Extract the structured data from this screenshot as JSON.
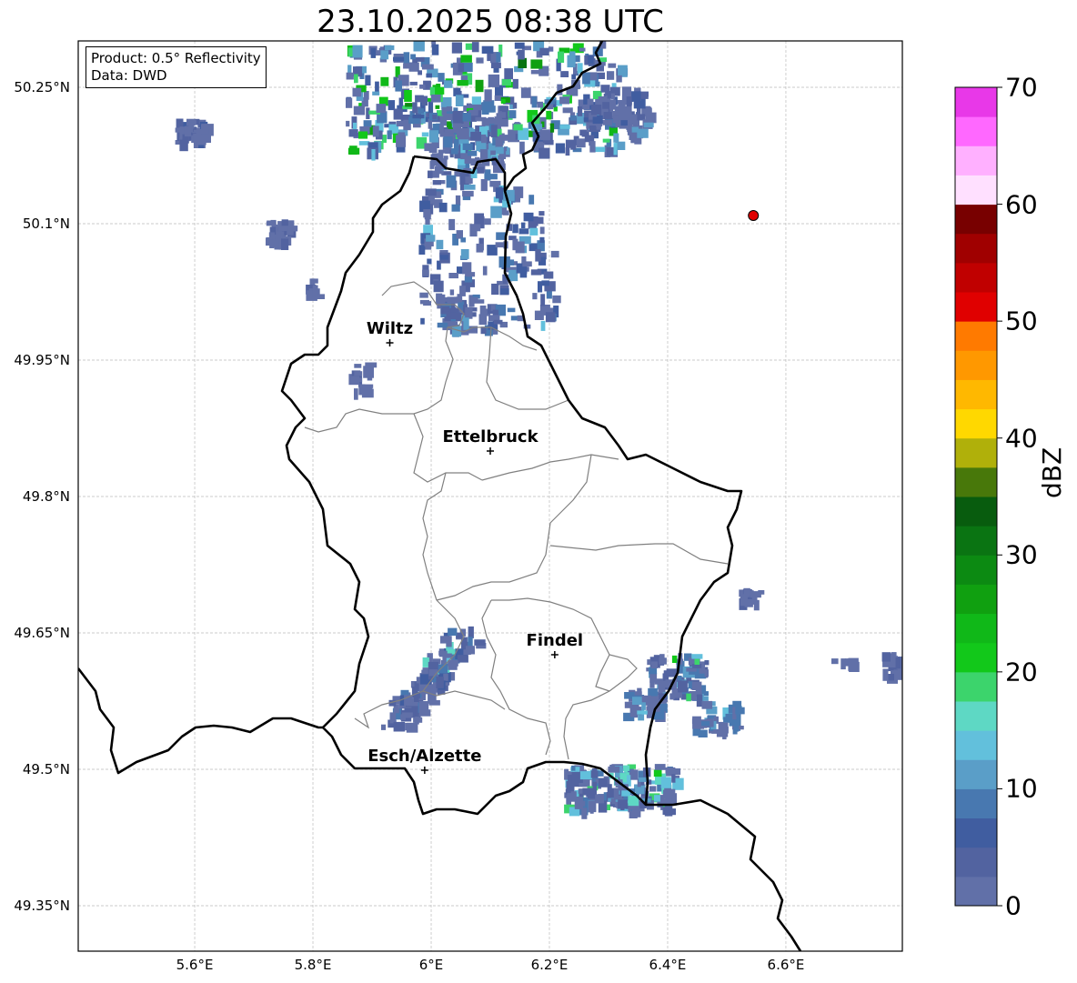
{
  "title": "23.10.2025 08:38 UTC",
  "info": {
    "product": "Product: 0.5° Reflectivity",
    "data": "Data: DWD"
  },
  "axes": {
    "lon_ticks": [
      {
        "v": 5.6,
        "label": "5.6°E"
      },
      {
        "v": 5.8,
        "label": "5.8°E"
      },
      {
        "v": 6.0,
        "label": "6°E"
      },
      {
        "v": 6.2,
        "label": "6.2°E"
      },
      {
        "v": 6.4,
        "label": "6.4°E"
      },
      {
        "v": 6.6,
        "label": "6.6°E"
      }
    ],
    "lat_ticks": [
      {
        "v": 50.25,
        "label": "50.25°N"
      },
      {
        "v": 50.1,
        "label": "50.1°N"
      },
      {
        "v": 49.95,
        "label": "49.95°N"
      },
      {
        "v": 49.8,
        "label": "49.8°N"
      },
      {
        "v": 49.65,
        "label": "49.65°N"
      },
      {
        "v": 49.5,
        "label": "49.5°N"
      },
      {
        "v": 49.35,
        "label": "49.35°N"
      }
    ],
    "lon_range": [
      5.403,
      6.797
    ],
    "lat_range": [
      49.3,
      50.301
    ]
  },
  "cities": [
    {
      "name": "Wiltz",
      "lon": 5.93,
      "lat": 49.969
    },
    {
      "name": "Ettelbruck",
      "lon": 6.1,
      "lat": 49.85
    },
    {
      "name": "Findel",
      "lon": 6.209,
      "lat": 49.626
    },
    {
      "name": "Esch/Alzette",
      "lon": 5.989,
      "lat": 49.499
    }
  ],
  "radar_site": {
    "lon": 6.545,
    "lat": 50.109,
    "color": "#e00000"
  },
  "colorbar": {
    "label": "dBZ",
    "min": 0,
    "max": 70,
    "step": 2.5,
    "ticks": [
      {
        "v": 0,
        "label": "0"
      },
      {
        "v": 10,
        "label": "10"
      },
      {
        "v": 20,
        "label": "20"
      },
      {
        "v": 30,
        "label": "30"
      },
      {
        "v": 40,
        "label": "40"
      },
      {
        "v": 50,
        "label": "50"
      },
      {
        "v": 60,
        "label": "60"
      },
      {
        "v": 70,
        "label": "70"
      }
    ],
    "colors": [
      "#6170a8",
      "#5263a0",
      "#405da0",
      "#4878b0",
      "#5a9ec8",
      "#62c0dc",
      "#5ed8c4",
      "#3cd46c",
      "#12c81a",
      "#10b818",
      "#10a010",
      "#0c8a12",
      "#0a7412",
      "#085c0e",
      "#48780a",
      "#b0b00a",
      "#ffd800",
      "#ffb800",
      "#ff9800",
      "#ff7a00",
      "#e00000",
      "#c00000",
      "#a00000",
      "#780000",
      "#ffe0ff",
      "#ffb0ff",
      "#ff68ff",
      "#e838e8"
    ]
  }
}
